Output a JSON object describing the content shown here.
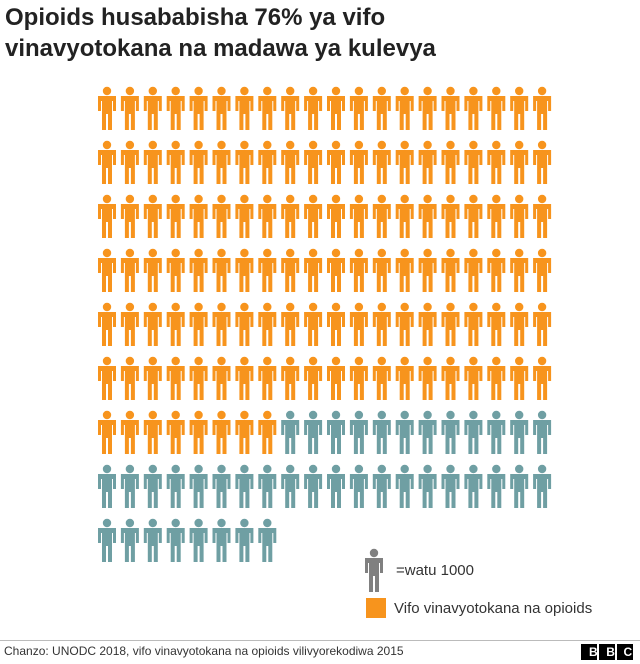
{
  "chart_data": {
    "type": "pictogram",
    "title": "Opioids husababisha 76% ya vifo vinavyotokana na madawa ya kulevya",
    "series": [
      {
        "name": "Vifo vinavyotokana na opioids",
        "color": "#f7941d",
        "values": [
          128
        ]
      },
      {
        "color": "#6f9fa3",
        "values": [
          40
        ]
      }
    ],
    "unit_label": "=watu 1000",
    "unit_color": "#808080",
    "source": "Chanzo: UNODC 2018, vifo vinavyotokana na opioids vilivyorekodiwa 2015",
    "logo": "BBC"
  }
}
